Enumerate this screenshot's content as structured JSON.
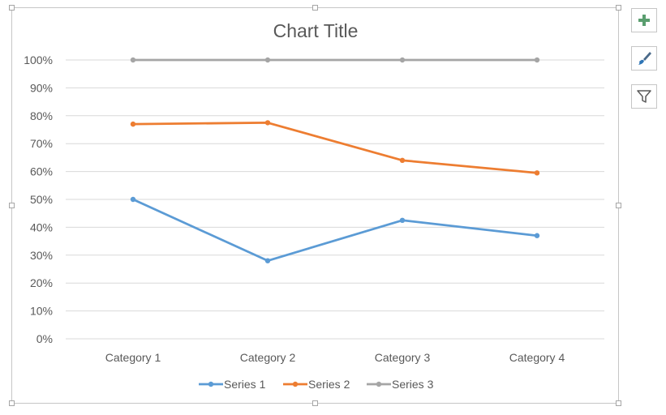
{
  "chart_data": {
    "type": "line",
    "title": "Chart Title",
    "categories": [
      "Category 1",
      "Category 2",
      "Category 3",
      "Category 4"
    ],
    "series": [
      {
        "name": "Series 1",
        "values": [
          0.5,
          0.28,
          0.425,
          0.37
        ],
        "color": "#5b9bd5"
      },
      {
        "name": "Series 2",
        "values": [
          0.77,
          0.775,
          0.64,
          0.595
        ],
        "color": "#ed7d31"
      },
      {
        "name": "Series 3",
        "values": [
          1.0,
          1.0,
          1.0,
          1.0
        ],
        "color": "#a5a5a5"
      }
    ],
    "yticks": [
      "0%",
      "10%",
      "20%",
      "30%",
      "40%",
      "50%",
      "60%",
      "70%",
      "80%",
      "90%",
      "100%"
    ],
    "ylim": [
      0,
      1
    ],
    "grid": true,
    "legend_position": "bottom"
  },
  "toolbar": {
    "add_icon": "plus-icon",
    "style_icon": "paintbrush-icon",
    "filter_icon": "funnel-icon",
    "accent_color": "#5a9e6f"
  }
}
